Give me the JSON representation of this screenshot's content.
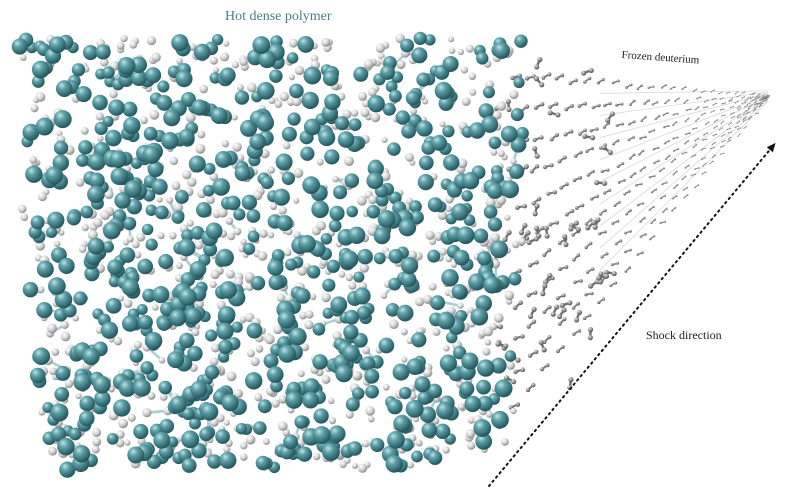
{
  "labels": {
    "polymer": "Hot dense polymer",
    "frozen": "Frozen deuterium",
    "shock": "Shock direction"
  },
  "colors": {
    "heavy_atom": "#3f8890",
    "light_atom": "#d8d8d8",
    "bond": "#8fbec3",
    "lattice": "#8a8a8a",
    "polymer_label": "#4a7d86",
    "arrow": "#111111"
  }
}
